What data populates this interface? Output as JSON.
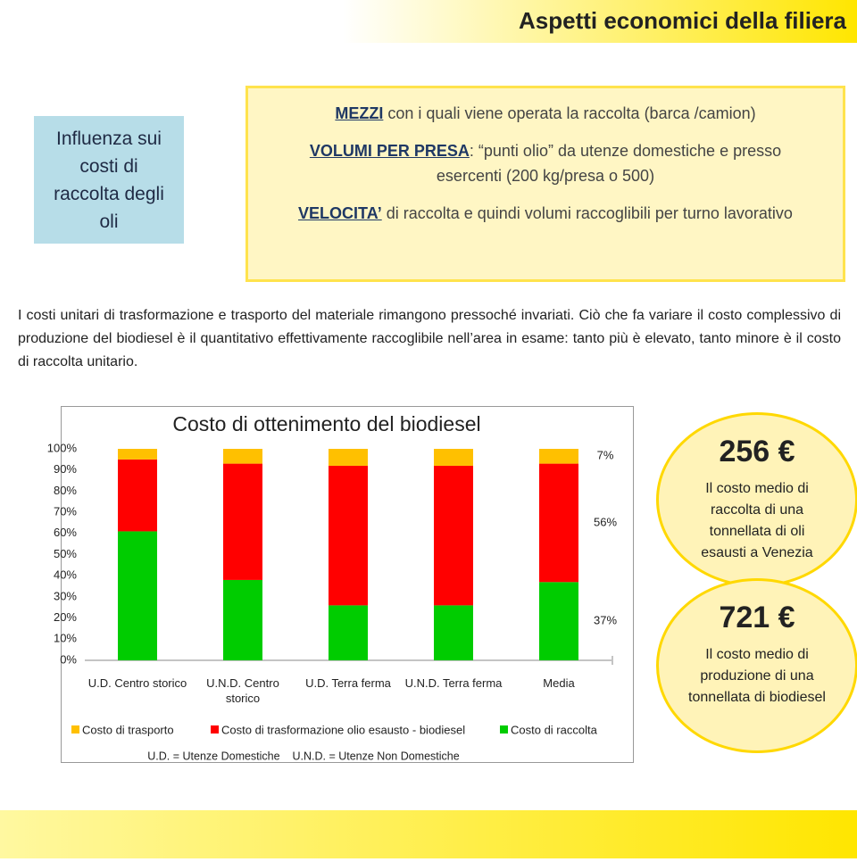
{
  "header": {
    "title": "Aspetti economici della filiera"
  },
  "sidebox": {
    "label": "Influenza sui costi di raccolta degli oli"
  },
  "factors": [
    {
      "key": "MEZZI",
      "text": " con i quali viene operata la raccolta (barca /camion)"
    },
    {
      "key": "VOLUMI PER PRESA",
      "text": ": “punti olio” da utenze domestiche e presso esercenti (200 kg/presa o 500)"
    },
    {
      "key": "VELOCITA’",
      "text": " di raccolta e quindi volumi raccoglibili per turno lavorativo"
    }
  ],
  "paragraph": "I costi unitari di trasformazione e trasporto del materiale rimangono pressoché invariati. Ciò che fa variare il costo complessivo di produzione del biodiesel è il quantitativo effettivamente raccoglibile nell’area in esame: tanto più è elevato, tanto minore è il costo di raccolta unitario.",
  "highlights": [
    {
      "amount": "256 €",
      "text": "Il costo medio di raccolta di una tonnellata di oli esausti a Venezia"
    },
    {
      "amount": "721 €",
      "text": "Il costo medio di produzione di una tonnellata di biodiesel"
    }
  ],
  "chart_data": {
    "type": "bar",
    "stacked": true,
    "title": "Costo di ottenimento del biodiesel",
    "categories": [
      "U.D. Centro storico",
      "U.N.D. Centro storico",
      "U.D. Terra ferma",
      "U.N.D. Terra ferma",
      "Media"
    ],
    "series": [
      {
        "name": "Costo di trasporto",
        "color": "#ffc000",
        "values": [
          5,
          7,
          8,
          8,
          7
        ],
        "value_labels": [
          null,
          null,
          null,
          null,
          "7%"
        ]
      },
      {
        "name": "Costo di trasformazione olio esausto - biodiesel",
        "color": "#ff0000",
        "values": [
          34,
          55,
          66,
          66,
          56
        ],
        "value_labels": [
          null,
          null,
          null,
          null,
          "56%"
        ]
      },
      {
        "name": "Costo di raccolta",
        "color": "#00cc00",
        "values": [
          61,
          38,
          26,
          26,
          37
        ],
        "value_labels": [
          null,
          null,
          null,
          null,
          "37%"
        ]
      }
    ],
    "ylim": [
      0,
      100
    ],
    "yticks": [
      {
        "value": 0,
        "label": "0%"
      },
      {
        "value": 10,
        "label": "10%"
      },
      {
        "value": 20,
        "label": "20%"
      },
      {
        "value": 30,
        "label": "30%"
      },
      {
        "value": 40,
        "label": "40%"
      },
      {
        "value": 50,
        "label": "50%"
      },
      {
        "value": 60,
        "label": "60%"
      },
      {
        "value": 70,
        "label": "70%"
      },
      {
        "value": 80,
        "label": "80%"
      },
      {
        "value": 90,
        "label": "90%"
      },
      {
        "value": 100,
        "label": "100%"
      }
    ],
    "grid": false,
    "footnote": "U.D. = Utenze Domestiche    U.N.D. = Utenze Non Domestiche"
  }
}
